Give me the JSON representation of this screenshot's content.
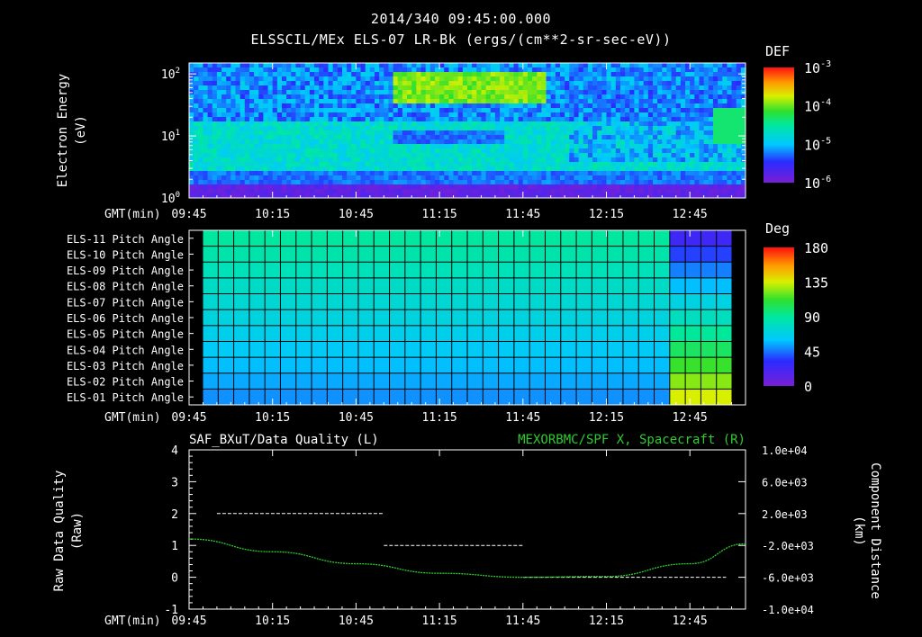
{
  "header": {
    "title": "2014/340 09:45:00.000",
    "subtitle": "ELSSCIL/MEx ELS-07 LR-Bk  (ergs/(cm**2-sr-sec-eV))"
  },
  "time_axis": {
    "label": "GMT(min)",
    "ticks": [
      "09:45",
      "10:15",
      "10:45",
      "11:15",
      "11:45",
      "12:15",
      "12:45"
    ]
  },
  "colors": {
    "background": "#000000",
    "text": "#ffffff",
    "trace_green": "#2ecc2e",
    "quality_trace": "#ffffff"
  },
  "chart_data": [
    {
      "type": "heatmap",
      "title": "ELSSCIL/MEx ELS-07 LR-Bk",
      "ylabel": "Electron Energy (eV)",
      "ylabel_line1": "Electron Energy",
      "ylabel_line2": "(eV)",
      "y_scale": "log",
      "ylim": [
        1,
        150
      ],
      "y_ticks": [
        {
          "base": "10",
          "exp": "0",
          "value": 1
        },
        {
          "base": "10",
          "exp": "1",
          "value": 10
        },
        {
          "base": "10",
          "exp": "2",
          "value": 100
        }
      ],
      "xlim": [
        "09:45",
        "13:05"
      ],
      "colorbar": {
        "label": "DEF",
        "scale": "log",
        "range": [
          1e-06,
          0.001
        ],
        "ticks": [
          {
            "base": "10",
            "exp": "-3",
            "value": 0.001
          },
          {
            "base": "10",
            "exp": "-4",
            "value": 0.0001
          },
          {
            "base": "10",
            "exp": "-5",
            "value": 1e-05
          },
          {
            "base": "10",
            "exp": "-6",
            "value": 1e-06
          }
        ]
      }
    },
    {
      "type": "heatmap",
      "ylabel_rows": [
        "ELS-11 Pitch Angle",
        "ELS-10 Pitch Angle",
        "ELS-09 Pitch Angle",
        "ELS-08 Pitch Angle",
        "ELS-07 Pitch Angle",
        "ELS-06 Pitch Angle",
        "ELS-05 Pitch Angle",
        "ELS-04 Pitch Angle",
        "ELS-03 Pitch Angle",
        "ELS-02 Pitch Angle",
        "ELS-01 Pitch Angle"
      ],
      "xlim": [
        "09:45",
        "13:05"
      ],
      "grid": true,
      "colorbar": {
        "label": "Deg",
        "range": [
          0,
          180
        ],
        "ticks": [
          "180",
          "135",
          "90",
          "45",
          "0"
        ]
      }
    },
    {
      "type": "line",
      "title_left": "SAF_BXuT/Data Quality (L)",
      "title_right": "MEXORBMC/SPF X, Spacecraft (R)",
      "ylabel_left_line1": "Raw Data Quality",
      "ylabel_left_line2": "(Raw)",
      "ylabel_right_line1": "Component Distance",
      "ylabel_right_line2": "(km)",
      "left_axis": {
        "ylim": [
          -1,
          4
        ],
        "ticks": [
          "4",
          "3",
          "2",
          "1",
          "0",
          "-1"
        ]
      },
      "right_axis": {
        "ylim": [
          -10000,
          10000
        ],
        "ticks": [
          "1.0e+04",
          "6.0e+03",
          "2.0e+03",
          "-2.0e+03",
          "-6.0e+03",
          "-1.0e+04"
        ]
      },
      "xlim": [
        "09:45",
        "13:05"
      ],
      "series": [
        {
          "name": "SAF_BXuT/Data Quality (L)",
          "axis": "left",
          "segments": [
            {
              "x": [
                "09:55",
                "10:55"
              ],
              "y": 2
            },
            {
              "x": [
                "10:55",
                "11:45"
              ],
              "y": 1
            },
            {
              "x": [
                "11:45",
                "12:58"
              ],
              "y": 0
            }
          ]
        },
        {
          "name": "MEXORBMC/SPF X, Spacecraft (R)",
          "axis": "right",
          "x": [
            "09:45",
            "10:15",
            "10:45",
            "11:15",
            "11:45",
            "12:15",
            "12:45",
            "13:05"
          ],
          "y": [
            -1200,
            -2800,
            -4300,
            -5500,
            -6000,
            -5900,
            -4300,
            -1800
          ]
        }
      ]
    }
  ]
}
